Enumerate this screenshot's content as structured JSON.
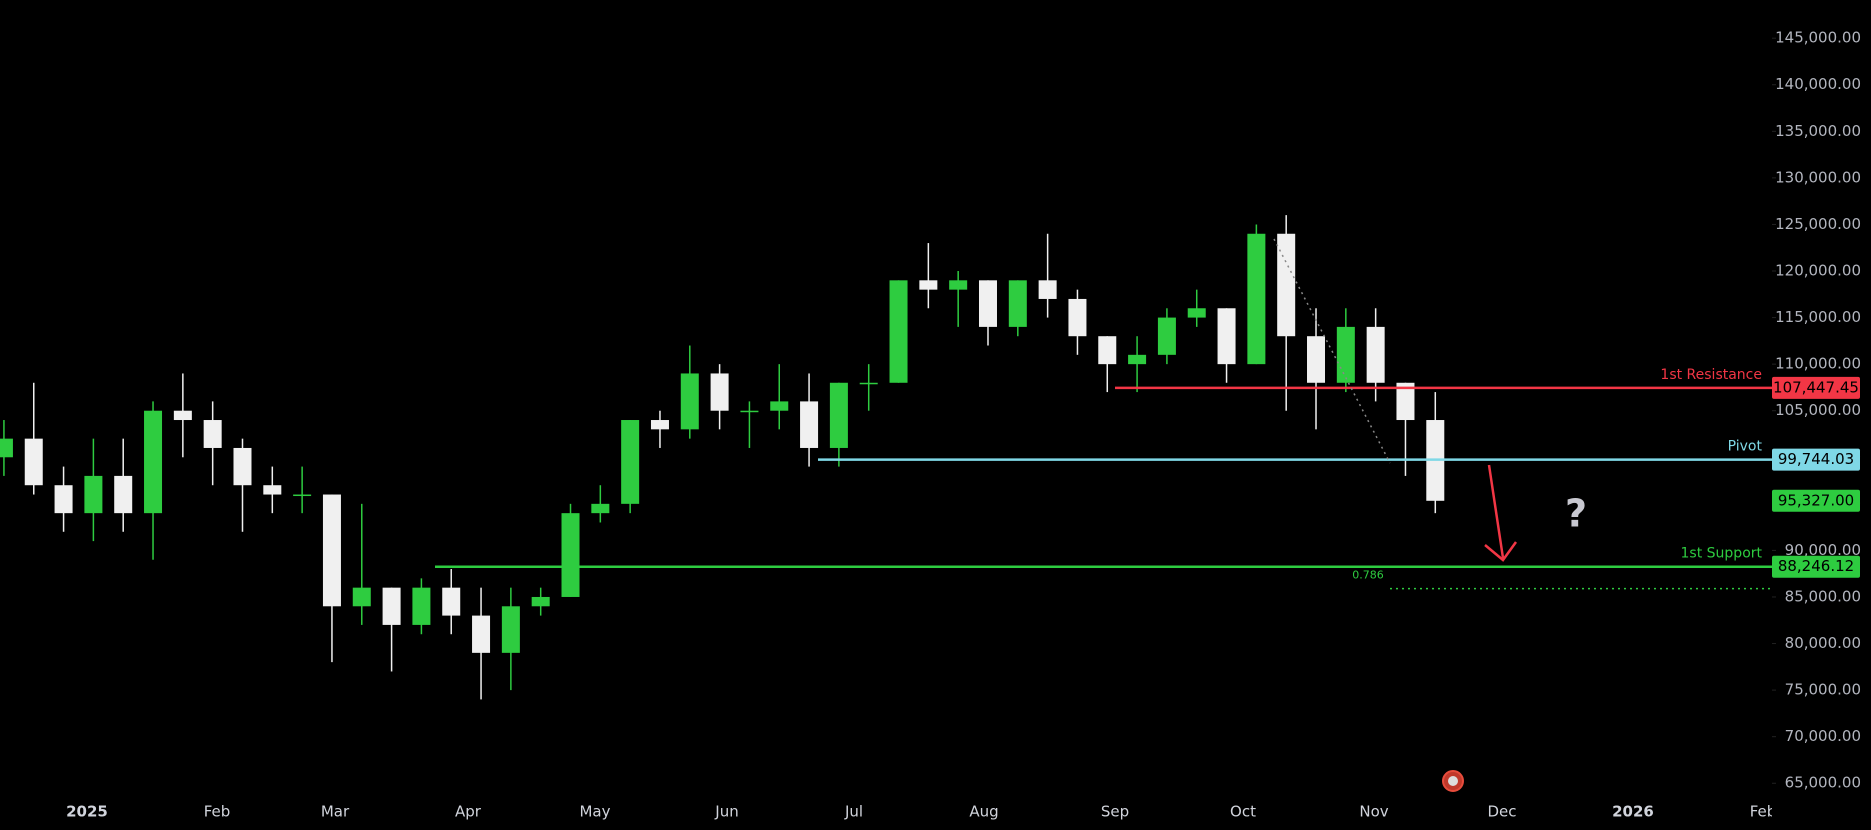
{
  "chart_data": {
    "type": "candlestick",
    "x_labels": [
      "2025",
      "Feb",
      "Mar",
      "Apr",
      "May",
      "Jun",
      "Jul",
      "Aug",
      "Sep",
      "Oct",
      "Nov",
      "Dec",
      "2026",
      "Feb"
    ],
    "open": [
      100000,
      102000,
      97000,
      94000,
      98000,
      94000,
      105000,
      104000,
      101000,
      97000,
      96000,
      96000,
      84000,
      86000,
      82000,
      86000,
      83000,
      79000,
      84000,
      85000,
      94000,
      95000,
      104000,
      103000,
      109000,
      105000,
      105000,
      106000,
      101000,
      108000,
      108000,
      119000,
      118000,
      119000,
      114000,
      119000,
      117000,
      113000,
      110000,
      111000,
      115000,
      116000,
      110000,
      124000,
      113000,
      108000,
      114000,
      108000,
      104000
    ],
    "high": [
      104000,
      108000,
      99000,
      102000,
      102000,
      106000,
      109000,
      106000,
      102000,
      99000,
      99000,
      96000,
      95000,
      86000,
      87000,
      88000,
      86000,
      86000,
      86000,
      95000,
      97000,
      104000,
      105000,
      112000,
      110000,
      106000,
      110000,
      109000,
      108000,
      110000,
      119000,
      123000,
      120000,
      119000,
      119000,
      124000,
      118000,
      113000,
      113000,
      116000,
      118000,
      116000,
      125000,
      126000,
      116000,
      116000,
      116000,
      108000,
      107000
    ],
    "low": [
      98000,
      96000,
      92000,
      91000,
      92000,
      89000,
      100000,
      97000,
      92000,
      94000,
      94000,
      78000,
      82000,
      77000,
      81000,
      81000,
      74000,
      75000,
      83000,
      85000,
      93000,
      94000,
      101000,
      102000,
      103000,
      101000,
      103000,
      99000,
      99000,
      105000,
      108000,
      116000,
      114000,
      112000,
      113000,
      115000,
      111000,
      107000,
      107000,
      110000,
      114000,
      108000,
      110000,
      105000,
      103000,
      107000,
      106000,
      98000,
      94000
    ],
    "close": [
      102000,
      97000,
      94000,
      98000,
      94000,
      105000,
      104000,
      101000,
      97000,
      96000,
      96000,
      84000,
      86000,
      82000,
      86000,
      83000,
      79000,
      84000,
      85000,
      94000,
      95000,
      104000,
      103000,
      109000,
      105000,
      105000,
      106000,
      101000,
      108000,
      108000,
      119000,
      118000,
      119000,
      114000,
      119000,
      117000,
      113000,
      110000,
      111000,
      115000,
      116000,
      110000,
      124000,
      113000,
      108000,
      114000,
      108000,
      104000,
      95327
    ],
    "up_color": "#2ecc40",
    "down_color": "#f0f0f0",
    "ylim": [
      63200,
      149100
    ],
    "yticks": [
      {
        "value": 65000,
        "label": "65,000.00"
      },
      {
        "value": 70000,
        "label": "70,000.00"
      },
      {
        "value": 75000,
        "label": "75,000.00"
      },
      {
        "value": 80000,
        "label": "80,000.00"
      },
      {
        "value": 85000,
        "label": "85,000.00"
      },
      {
        "value": 90000,
        "label": "90,000.00"
      },
      {
        "value": 95000,
        "label": "95,000.00"
      },
      {
        "value": 100000,
        "label": "100,000.00"
      },
      {
        "value": 105000,
        "label": "105,000.00"
      },
      {
        "value": 110000,
        "label": "110,000.00"
      },
      {
        "value": 115000,
        "label": "115,000.00"
      },
      {
        "value": 120000,
        "label": "120,000.00"
      },
      {
        "value": 125000,
        "label": "125,000.00"
      },
      {
        "value": 130000,
        "label": "130,000.00"
      },
      {
        "value": 135000,
        "label": "135,000.00"
      },
      {
        "value": 140000,
        "label": "140,000.00"
      },
      {
        "value": 145000,
        "label": "145,000.00"
      }
    ],
    "levels": [
      {
        "name": "1st Resistance",
        "value": 107447.45,
        "value_label": "107,447.45",
        "color": "#f23645"
      },
      {
        "name": "Pivot",
        "value": 99744.03,
        "value_label": "99,744.03",
        "color": "#7fd8e6"
      },
      {
        "name": "1st Support",
        "value": 88246.12,
        "value_label": "88,246.12",
        "color": "#2ecc40"
      }
    ],
    "last_price": {
      "value": 95327,
      "value_label": "95,327.00",
      "color": "#2ecc40"
    },
    "fib": {
      "name": "0.786",
      "value": 85900,
      "color": "#2ecc40"
    },
    "annotation": "?"
  }
}
